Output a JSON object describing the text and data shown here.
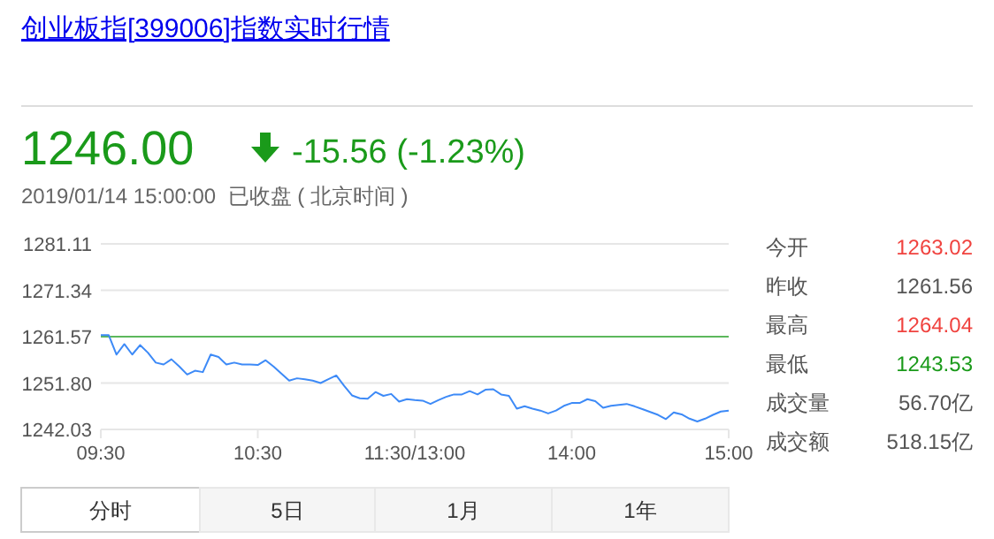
{
  "chart_data": {
    "type": "line",
    "title": "创业板指[399006]指数实时行情",
    "annotations": [
      "1246.00",
      "-15.56 (-1.23%)",
      "2019/01/14 15:00:00  已收盘 ( 北京时间 )",
      "今开",
      "1263.02",
      "昨收",
      "1261.56",
      "最高",
      "1264.04",
      "最低",
      "1243.53",
      "成交量",
      "56.70亿",
      "成交额",
      "518.15亿",
      "分时",
      "5日",
      "1月",
      "1年"
    ],
    "categories": [
      "09:30",
      null,
      null,
      null,
      null,
      null,
      null,
      null,
      null,
      null,
      null,
      null,
      null,
      null,
      null,
      null,
      null,
      null,
      null,
      null,
      "10:30",
      null,
      null,
      null,
      null,
      null,
      null,
      null,
      null,
      null,
      null,
      null,
      null,
      null,
      null,
      null,
      null,
      null,
      null,
      null,
      "11:30/13:00",
      null,
      null,
      null,
      null,
      null,
      null,
      null,
      null,
      null,
      null,
      null,
      null,
      null,
      null,
      null,
      null,
      null,
      null,
      null,
      "14:00",
      null,
      null,
      null,
      null,
      null,
      null,
      null,
      null,
      null,
      null,
      null,
      null,
      null,
      null,
      null,
      null,
      null,
      null,
      null,
      "15:00"
    ],
    "ylim": [
      1242.03,
      1281.11
    ],
    "yticks": [
      1242.03,
      {
        "value": 1251.8,
        "label": "1251.80"
      },
      1261.57,
      1271.34,
      1281.11
    ],
    "grid": "y",
    "ref_lines": [
      {
        "axis": "y",
        "value": 1261.56,
        "color": "#5cb85c"
      }
    ],
    "series": [
      {
        "color": "#3d8af7",
        "values": [
          1261.9,
          1261.9,
          1257.8,
          1260.0,
          1257.8,
          1259.8,
          1258.2,
          1256.1,
          1255.7,
          1256.8,
          1255.3,
          1253.6,
          1254.4,
          1254.1,
          1257.8,
          1257.3,
          1255.7,
          1256.1,
          1255.7,
          1255.7,
          1255.6,
          1256.6,
          1255.3,
          1253.8,
          1252.3,
          1252.8,
          1252.6,
          1252.3,
          1251.8,
          1252.6,
          1253.4,
          1251.2,
          1249.2,
          1248.6,
          1248.5,
          1249.9,
          1249.1,
          1249.5,
          1247.9,
          1248.4,
          1248.2,
          1248.1,
          1247.4,
          1248.2,
          1248.9,
          1249.4,
          1249.4,
          1250.1,
          1249.4,
          1250.4,
          1250.5,
          1249.4,
          1249.1,
          1246.4,
          1246.9,
          1246.4,
          1246.0,
          1245.4,
          1246.0,
          1247.0,
          1247.6,
          1247.6,
          1248.4,
          1248.0,
          1246.6,
          1247.0,
          1247.2,
          1247.4,
          1246.9,
          1246.3,
          1245.7,
          1245.1,
          1244.2,
          1245.6,
          1245.2,
          1244.3,
          1243.7,
          1244.3,
          1245.1,
          1245.8,
          1246.0
        ]
      }
    ]
  }
}
